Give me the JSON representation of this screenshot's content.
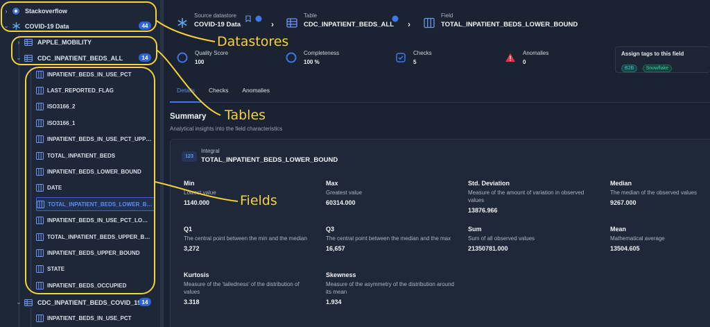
{
  "sidebar": {
    "datastores": [
      {
        "label": "Stackoverflow",
        "chevron": "›"
      },
      {
        "label": "COVID-19 Data",
        "badge": "44",
        "chevron": "⌄"
      }
    ],
    "tables": [
      {
        "label": "APPLE_MOBILITY",
        "chevron": "›"
      },
      {
        "label": "CDC_INPATIENT_BEDS_ALL",
        "badge": "14",
        "chevron": "⌄"
      }
    ],
    "fields": [
      "INPATIENT_BEDS_IN_USE_PCT",
      "LAST_REPORTED_FLAG",
      "ISO3166_2",
      "ISO3166_1",
      "INPATIENT_BEDS_IN_USE_PCT_UPPE...",
      "TOTAL_INPATIENT_BEDS",
      "INPATIENT_BEDS_LOWER_BOUND",
      "DATE",
      "TOTAL_INPATIENT_BEDS_LOWER_BO...",
      "INPATIENT_BEDS_IN_USE_PCT_LOWE...",
      "TOTAL_INPATIENT_BEDS_UPPER_BO...",
      "INPATIENT_BEDS_UPPER_BOUND",
      "STATE",
      "INPATIENT_BEDS_OCCUPIED"
    ],
    "selected_field_index": 8,
    "next_table": {
      "label": "CDC_INPATIENT_BEDS_COVID_19",
      "badge": "14",
      "chevron": "⌄"
    },
    "next_field": "INPATIENT_BEDS_IN_USE_PCT"
  },
  "breadcrumb": {
    "source": {
      "label": "Source datastore",
      "value": "COVID-19 Data"
    },
    "table": {
      "label": "Table",
      "value": "CDC_INPATIENT_BEDS_ALL"
    },
    "field": {
      "label": "Field",
      "value": "TOTAL_INPATIENT_BEDS_LOWER_BOUND"
    }
  },
  "stats": [
    {
      "label": "Quality Score",
      "value": "100",
      "icon": "quality-score-icon"
    },
    {
      "label": "Completeness",
      "value": "100 %",
      "icon": "completeness-icon"
    },
    {
      "label": "Checks",
      "value": "5",
      "icon": "checks-icon"
    },
    {
      "label": "Anomalies",
      "value": "0",
      "icon": "anomalies-icon"
    }
  ],
  "tags": {
    "title": "Assign tags to this field",
    "items": [
      "B2B",
      "Snowflake"
    ]
  },
  "tabs": [
    "Details",
    "Checks",
    "Anomalies"
  ],
  "summary": {
    "title": "Summary",
    "subtitle": "Analytical insights into the field characteristics",
    "type_badge": "123",
    "type_label": "Integral",
    "field_name": "TOTAL_INPATIENT_BEDS_LOWER_BOUND",
    "metrics": [
      {
        "name": "Min",
        "desc": "Lowest value",
        "value": "1140.000"
      },
      {
        "name": "Max",
        "desc": "Greatest value",
        "value": "60314.000"
      },
      {
        "name": "Std. Deviation",
        "desc": "Measure of the amount of variation in observed values",
        "value": "13876.966"
      },
      {
        "name": "Median",
        "desc": "The median of the observed values",
        "value": "9267.000"
      },
      {
        "name": "Q1",
        "desc": "The central point between the min and the median",
        "value": "3,272"
      },
      {
        "name": "Q3",
        "desc": "The central point between the median and the max",
        "value": "16,657"
      },
      {
        "name": "Sum",
        "desc": "Sum of all observed values",
        "value": "21350781.000"
      },
      {
        "name": "Mean",
        "desc": "Mathematical average",
        "value": "13504.605"
      },
      {
        "name": "Kurtosis",
        "desc": "Measure of the 'tailedness' of the distribution of values",
        "value": "3.318"
      },
      {
        "name": "Skewness",
        "desc": "Measure of the asymmetry of the distribution around its mean",
        "value": "1.934"
      }
    ]
  },
  "annotations": {
    "datastores": "Datastores",
    "tables": "Tables",
    "fields": "Fields"
  },
  "colors": {
    "accent": "#3f77e8",
    "highlight": "#f5d23a",
    "badge": "#2f64d6",
    "danger": "#e0314b"
  }
}
